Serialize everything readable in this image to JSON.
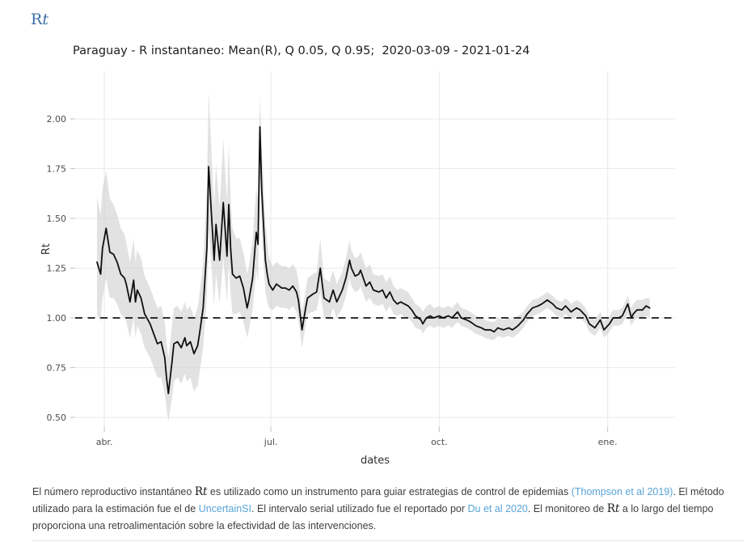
{
  "heading": {
    "text": "Rt"
  },
  "colors": {
    "heading_blue": "#3b6fa8",
    "link_blue": "#58a4d8",
    "mean_line": "#0f0f0f",
    "ribbon_gray": "#d0d0d0",
    "grid_gray": "#eaeaea",
    "tick_gray": "#c2c2c2",
    "tick_label_gray": "#4c4c4c",
    "body_text": "#3e3e3e"
  },
  "chart_data": {
    "type": "line",
    "title": "Paraguay - R instantaneo: Mean(R), Q 0.05, Q 0.95;  2020-03-09 - 2021-01-24",
    "xlabel": "dates",
    "ylabel": "Rt",
    "grid": "on",
    "legend": "none",
    "x_domain": [
      "2020-03-09",
      "2021-01-24"
    ],
    "ylim": [
      0.45,
      2.26
    ],
    "y_ticks": [
      "0.50",
      "0.75",
      "1.00",
      "1.25",
      "1.50",
      "1.75",
      "2.00"
    ],
    "x_ticks": [
      {
        "date": "2020-04-01",
        "label": "abr."
      },
      {
        "date": "2020-07-01",
        "label": "jul."
      },
      {
        "date": "2020-10-01",
        "label": "oct."
      },
      {
        "date": "2021-01-01",
        "label": "ene."
      }
    ],
    "hline": {
      "y": 1.0,
      "style": "dashed"
    },
    "series_names": [
      "Mean(R)",
      "Q 0.05",
      "Q 0.95"
    ],
    "point_format": [
      "date",
      "mean",
      "q05",
      "q95"
    ],
    "points": [
      [
        "2020-03-28",
        1.28,
        1.02,
        1.6
      ],
      [
        "2020-03-30",
        1.22,
        0.98,
        1.52
      ],
      [
        "2020-03-31",
        1.35,
        1.1,
        1.65
      ],
      [
        "2020-04-02",
        1.45,
        1.2,
        1.74
      ],
      [
        "2020-04-04",
        1.33,
        1.1,
        1.6
      ],
      [
        "2020-04-06",
        1.32,
        1.1,
        1.57
      ],
      [
        "2020-04-08",
        1.28,
        1.07,
        1.52
      ],
      [
        "2020-04-10",
        1.22,
        1.02,
        1.45
      ],
      [
        "2020-04-12",
        1.2,
        1.0,
        1.42
      ],
      [
        "2020-04-13",
        1.17,
        0.98,
        1.38
      ],
      [
        "2020-04-15",
        1.08,
        0.9,
        1.28
      ],
      [
        "2020-04-17",
        1.19,
        1.0,
        1.4
      ],
      [
        "2020-04-18",
        1.08,
        0.9,
        1.28
      ],
      [
        "2020-04-19",
        1.14,
        0.96,
        1.34
      ],
      [
        "2020-04-21",
        1.1,
        0.92,
        1.3
      ],
      [
        "2020-04-23",
        1.02,
        0.85,
        1.21
      ],
      [
        "2020-04-26",
        0.97,
        0.8,
        1.15
      ],
      [
        "2020-04-28",
        0.92,
        0.75,
        1.1
      ],
      [
        "2020-04-30",
        0.87,
        0.7,
        1.05
      ],
      [
        "2020-05-02",
        0.88,
        0.7,
        1.06
      ],
      [
        "2020-05-04",
        0.8,
        0.62,
        0.98
      ],
      [
        "2020-05-05",
        0.7,
        0.54,
        0.88
      ],
      [
        "2020-05-06",
        0.62,
        0.48,
        0.8
      ],
      [
        "2020-05-08",
        0.78,
        0.6,
        0.96
      ],
      [
        "2020-05-09",
        0.87,
        0.68,
        1.05
      ],
      [
        "2020-05-11",
        0.88,
        0.7,
        1.06
      ],
      [
        "2020-05-13",
        0.85,
        0.67,
        1.03
      ],
      [
        "2020-05-15",
        0.9,
        0.72,
        1.08
      ],
      [
        "2020-05-16",
        0.86,
        0.68,
        1.04
      ],
      [
        "2020-05-18",
        0.88,
        0.7,
        1.06
      ],
      [
        "2020-05-20",
        0.82,
        0.63,
        1.0
      ],
      [
        "2020-05-22",
        0.86,
        0.66,
        1.05
      ],
      [
        "2020-05-23",
        0.92,
        0.72,
        1.12
      ],
      [
        "2020-05-25",
        1.05,
        0.85,
        1.28
      ],
      [
        "2020-05-27",
        1.35,
        1.1,
        1.65
      ],
      [
        "2020-05-28",
        1.76,
        1.45,
        2.14
      ],
      [
        "2020-05-30",
        1.45,
        1.2,
        1.75
      ],
      [
        "2020-05-31",
        1.29,
        1.06,
        1.55
      ],
      [
        "2020-06-01",
        1.47,
        1.22,
        1.78
      ],
      [
        "2020-06-03",
        1.29,
        1.07,
        1.55
      ],
      [
        "2020-06-05",
        1.58,
        1.3,
        1.9
      ],
      [
        "2020-06-07",
        1.31,
        1.08,
        1.58
      ],
      [
        "2020-06-08",
        1.57,
        1.28,
        1.88
      ],
      [
        "2020-06-09",
        1.35,
        1.12,
        1.6
      ],
      [
        "2020-06-10",
        1.22,
        1.02,
        1.45
      ],
      [
        "2020-06-12",
        1.2,
        1.02,
        1.4
      ],
      [
        "2020-06-14",
        1.21,
        1.03,
        1.4
      ],
      [
        "2020-06-16",
        1.15,
        0.98,
        1.33
      ],
      [
        "2020-06-18",
        1.05,
        0.9,
        1.22
      ],
      [
        "2020-06-19",
        1.09,
        0.94,
        1.26
      ],
      [
        "2020-06-21",
        1.2,
        1.04,
        1.4
      ],
      [
        "2020-06-23",
        1.43,
        1.24,
        1.65
      ],
      [
        "2020-06-24",
        1.37,
        1.18,
        1.58
      ],
      [
        "2020-06-25",
        1.96,
        1.72,
        2.12
      ],
      [
        "2020-06-26",
        1.64,
        1.44,
        1.86
      ],
      [
        "2020-06-28",
        1.29,
        1.13,
        1.48
      ],
      [
        "2020-06-29",
        1.22,
        1.08,
        1.38
      ],
      [
        "2020-06-30",
        1.17,
        1.05,
        1.3
      ],
      [
        "2020-07-02",
        1.14,
        1.04,
        1.26
      ],
      [
        "2020-07-04",
        1.17,
        1.06,
        1.28
      ],
      [
        "2020-07-07",
        1.15,
        1.05,
        1.26
      ],
      [
        "2020-07-09",
        1.15,
        1.05,
        1.26
      ],
      [
        "2020-07-11",
        1.14,
        1.04,
        1.25
      ],
      [
        "2020-07-13",
        1.16,
        1.06,
        1.27
      ],
      [
        "2020-07-15",
        1.13,
        1.03,
        1.24
      ],
      [
        "2020-07-16",
        1.09,
        0.99,
        1.19
      ],
      [
        "2020-07-18",
        0.94,
        0.85,
        1.03
      ],
      [
        "2020-07-20",
        1.05,
        0.96,
        1.14
      ],
      [
        "2020-07-21",
        1.1,
        1.02,
        1.2
      ],
      [
        "2020-07-24",
        1.12,
        1.03,
        1.22
      ],
      [
        "2020-07-26",
        1.13,
        1.04,
        1.23
      ],
      [
        "2020-07-28",
        1.25,
        1.13,
        1.4
      ],
      [
        "2020-07-30",
        1.1,
        1.0,
        1.2
      ],
      [
        "2020-08-02",
        1.08,
        0.99,
        1.18
      ],
      [
        "2020-08-04",
        1.14,
        1.05,
        1.24
      ],
      [
        "2020-08-06",
        1.08,
        1.0,
        1.17
      ],
      [
        "2020-08-09",
        1.14,
        1.05,
        1.23
      ],
      [
        "2020-08-11",
        1.2,
        1.11,
        1.3
      ],
      [
        "2020-08-13",
        1.29,
        1.2,
        1.39
      ],
      [
        "2020-08-14",
        1.25,
        1.16,
        1.34
      ],
      [
        "2020-08-16",
        1.21,
        1.13,
        1.3
      ],
      [
        "2020-08-18",
        1.22,
        1.14,
        1.31
      ],
      [
        "2020-08-19",
        1.24,
        1.16,
        1.33
      ],
      [
        "2020-08-22",
        1.16,
        1.08,
        1.25
      ],
      [
        "2020-08-24",
        1.18,
        1.1,
        1.27
      ],
      [
        "2020-08-26",
        1.14,
        1.07,
        1.22
      ],
      [
        "2020-08-29",
        1.13,
        1.06,
        1.21
      ],
      [
        "2020-08-31",
        1.14,
        1.07,
        1.22
      ],
      [
        "2020-09-02",
        1.1,
        1.03,
        1.18
      ],
      [
        "2020-09-04",
        1.13,
        1.06,
        1.21
      ],
      [
        "2020-09-06",
        1.09,
        1.02,
        1.16
      ],
      [
        "2020-09-08",
        1.07,
        1.01,
        1.14
      ],
      [
        "2020-09-10",
        1.08,
        1.02,
        1.15
      ],
      [
        "2020-09-12",
        1.07,
        1.0,
        1.14
      ],
      [
        "2020-09-14",
        1.06,
        1.0,
        1.13
      ],
      [
        "2020-09-16",
        1.04,
        0.98,
        1.1
      ],
      [
        "2020-09-18",
        1.01,
        0.95,
        1.07
      ],
      [
        "2020-09-21",
        0.99,
        0.94,
        1.05
      ],
      [
        "2020-09-22",
        0.97,
        0.92,
        1.03
      ],
      [
        "2020-09-24",
        1.0,
        0.95,
        1.06
      ],
      [
        "2020-09-26",
        1.01,
        0.96,
        1.07
      ],
      [
        "2020-09-28",
        1.0,
        0.95,
        1.05
      ],
      [
        "2020-10-01",
        1.01,
        0.96,
        1.06
      ],
      [
        "2020-10-03",
        1.0,
        0.95,
        1.05
      ],
      [
        "2020-10-06",
        1.01,
        0.96,
        1.06
      ],
      [
        "2020-10-08",
        1.0,
        0.95,
        1.05
      ],
      [
        "2020-10-11",
        1.03,
        0.98,
        1.08
      ],
      [
        "2020-10-13",
        1.0,
        0.96,
        1.05
      ],
      [
        "2020-10-16",
        0.99,
        0.95,
        1.04
      ],
      [
        "2020-10-18",
        0.98,
        0.94,
        1.03
      ],
      [
        "2020-10-21",
        0.96,
        0.92,
        1.01
      ],
      [
        "2020-10-24",
        0.95,
        0.91,
        1.0
      ],
      [
        "2020-10-26",
        0.94,
        0.9,
        0.99
      ],
      [
        "2020-10-29",
        0.94,
        0.89,
        0.98
      ],
      [
        "2020-10-31",
        0.93,
        0.89,
        0.98
      ],
      [
        "2020-11-02",
        0.95,
        0.91,
        1.0
      ],
      [
        "2020-11-05",
        0.94,
        0.9,
        0.99
      ],
      [
        "2020-11-08",
        0.95,
        0.91,
        1.0
      ],
      [
        "2020-11-10",
        0.94,
        0.9,
        0.99
      ],
      [
        "2020-11-13",
        0.96,
        0.92,
        1.01
      ],
      [
        "2020-11-16",
        0.99,
        0.95,
        1.03
      ],
      [
        "2020-11-18",
        1.02,
        0.98,
        1.06
      ],
      [
        "2020-11-21",
        1.05,
        1.01,
        1.09
      ],
      [
        "2020-11-24",
        1.06,
        1.02,
        1.1
      ],
      [
        "2020-11-26",
        1.07,
        1.03,
        1.11
      ],
      [
        "2020-11-29",
        1.09,
        1.05,
        1.13
      ],
      [
        "2020-12-02",
        1.07,
        1.03,
        1.11
      ],
      [
        "2020-12-04",
        1.05,
        1.01,
        1.09
      ],
      [
        "2020-12-07",
        1.04,
        1.0,
        1.08
      ],
      [
        "2020-12-09",
        1.06,
        1.02,
        1.1
      ],
      [
        "2020-12-12",
        1.03,
        0.99,
        1.07
      ],
      [
        "2020-12-15",
        1.05,
        1.01,
        1.09
      ],
      [
        "2020-12-17",
        1.04,
        1.0,
        1.08
      ],
      [
        "2020-12-20",
        1.01,
        0.97,
        1.05
      ],
      [
        "2020-12-22",
        0.97,
        0.93,
        1.01
      ],
      [
        "2020-12-25",
        0.95,
        0.91,
        0.99
      ],
      [
        "2020-12-28",
        0.99,
        0.95,
        1.03
      ],
      [
        "2020-12-30",
        0.94,
        0.9,
        0.98
      ],
      [
        "2021-01-02",
        0.97,
        0.93,
        1.01
      ],
      [
        "2021-01-04",
        1.0,
        0.96,
        1.04
      ],
      [
        "2021-01-07",
        1.0,
        0.96,
        1.04
      ],
      [
        "2021-01-09",
        1.01,
        0.97,
        1.05
      ],
      [
        "2021-01-12",
        1.07,
        1.02,
        1.11
      ],
      [
        "2021-01-14",
        1.0,
        0.96,
        1.05
      ],
      [
        "2021-01-15",
        1.02,
        0.98,
        1.07
      ],
      [
        "2021-01-17",
        1.04,
        1.0,
        1.09
      ],
      [
        "2021-01-20",
        1.04,
        1.0,
        1.09
      ],
      [
        "2021-01-22",
        1.06,
        1.01,
        1.1
      ],
      [
        "2021-01-24",
        1.05,
        1.0,
        1.1
      ]
    ]
  },
  "footnote": {
    "runs": [
      {
        "type": "text",
        "text": "El número reproductivo instantáneo "
      },
      {
        "type": "math",
        "text": "Rt"
      },
      {
        "type": "text",
        "text": " es utilizado como un instrumento para guiar estrategias de control de epidemias "
      },
      {
        "type": "link",
        "text": "(Thompson et al 2019)"
      },
      {
        "type": "text",
        "text": ". El método utilizado para la estimación fue el de "
      },
      {
        "type": "link",
        "text": "UncertainSI"
      },
      {
        "type": "text",
        "text": ". El intervalo serial utilizado fue el reportado por "
      },
      {
        "type": "link",
        "text": "Du et al 2020"
      },
      {
        "type": "text",
        "text": ". El monitoreo de "
      },
      {
        "type": "math",
        "text": "Rt"
      },
      {
        "type": "text",
        "text": " a lo largo del tiempo proporciona una retroalimentación sobre la efectividad de las intervenciones."
      }
    ]
  }
}
